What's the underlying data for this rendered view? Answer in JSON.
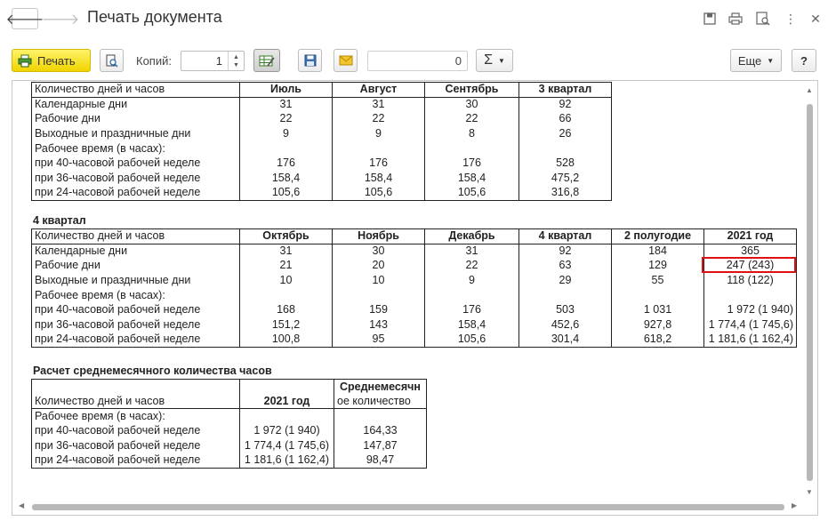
{
  "window": {
    "title": "Печать документа"
  },
  "toolbar": {
    "print_label": "Печать",
    "copies_label": "Копий:",
    "copies_value": "1",
    "sum_value": "0",
    "sum_symbol": "Σ",
    "more_label": "Еще",
    "help_label": "?"
  },
  "q3": {
    "header": [
      "Количество дней и часов",
      "Июль",
      "Август",
      "Сентябрь",
      "3 квартал"
    ],
    "rows": [
      [
        "Календарные дни",
        "31",
        "31",
        "30",
        "92"
      ],
      [
        "Рабочие дни",
        "22",
        "22",
        "22",
        "66"
      ],
      [
        "Выходные и праздничные дни",
        "9",
        "9",
        "8",
        "26"
      ],
      [
        "Рабочее время (в часах):",
        "",
        "",
        "",
        ""
      ],
      [
        "при 40-часовой рабочей неделе",
        "176",
        "176",
        "176",
        "528"
      ],
      [
        "при 36-часовой рабочей неделе",
        "158,4",
        "158,4",
        "158,4",
        "475,2"
      ],
      [
        "при 24-часовой рабочей неделе",
        "105,6",
        "105,6",
        "105,6",
        "316,8"
      ]
    ]
  },
  "q4": {
    "title": "4 квартал",
    "header": [
      "Количество дней и часов",
      "Октябрь",
      "Ноябрь",
      "Декабрь",
      "4 квартал",
      "2 полугодие",
      "2021 год"
    ],
    "rows": [
      [
        "Календарные дни",
        "31",
        "30",
        "31",
        "92",
        "184",
        "365"
      ],
      [
        "Рабочие дни",
        "21",
        "20",
        "22",
        "63",
        "129",
        "247 (243)"
      ],
      [
        "Выходные и праздничные дни",
        "10",
        "10",
        "9",
        "29",
        "55",
        "118 (122)"
      ],
      [
        "Рабочее время (в часах):",
        "",
        "",
        "",
        "",
        "",
        ""
      ],
      [
        "при 40-часовой рабочей неделе",
        "168",
        "159",
        "176",
        "503",
        "1 031",
        "1 972 (1 940)"
      ],
      [
        "при 36-часовой рабочей неделе",
        "151,2",
        "143",
        "158,4",
        "452,6",
        "927,8",
        "1 774,4 (1 745,6)"
      ],
      [
        "при 24-часовой рабочей неделе",
        "100,8",
        "95",
        "105,6",
        "301,4",
        "618,2",
        "1 181,6 (1 162,4)"
      ]
    ]
  },
  "avg": {
    "title": "Расчет среднемесячного количества часов",
    "header": [
      "Количество дней и часов",
      "2021 год",
      "Среднемесячн",
      "ое количество"
    ],
    "rows": [
      [
        "Рабочее время (в часах):",
        "",
        ""
      ],
      [
        "при 40-часовой рабочей неделе",
        "1 972 (1 940)",
        "164,33"
      ],
      [
        "при 36-часовой рабочей неделе",
        "1 774,4 (1 745,6)",
        "147,87"
      ],
      [
        "при 24-часовой рабочей неделе",
        "1 181,6 (1 162,4)",
        "98,47"
      ]
    ]
  }
}
